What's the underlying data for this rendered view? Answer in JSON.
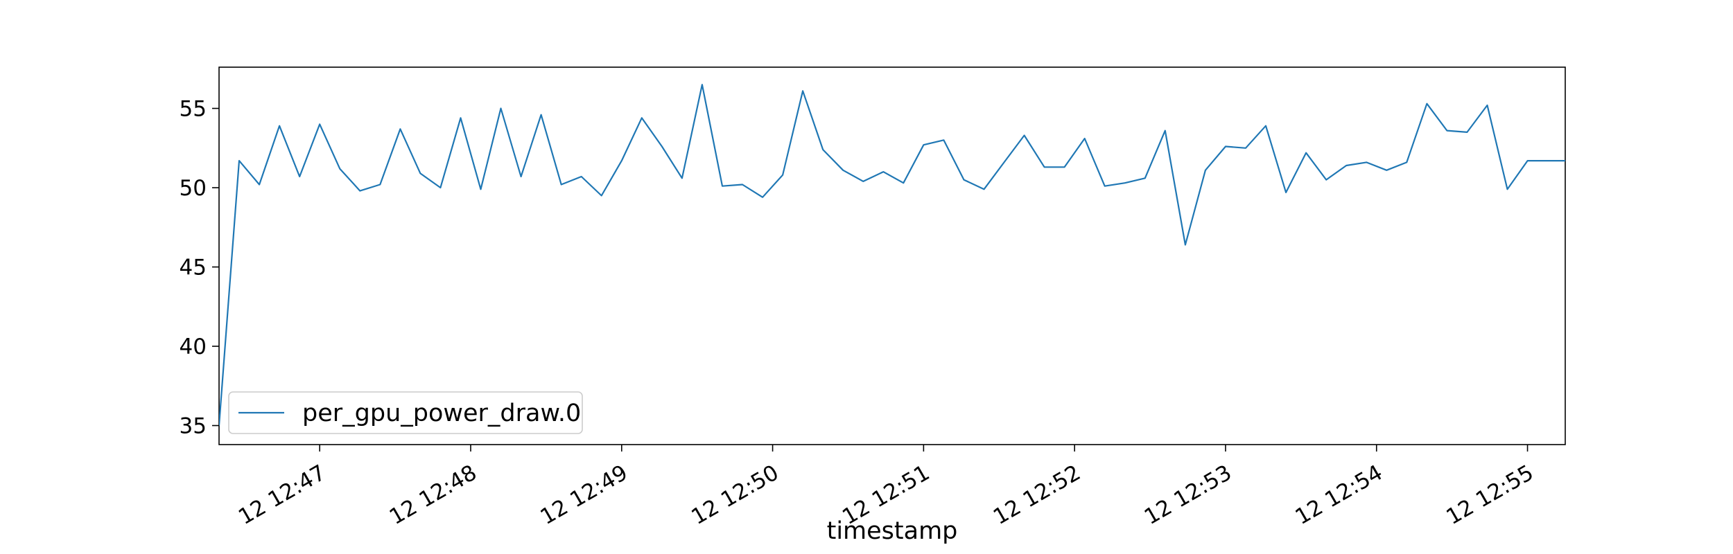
{
  "chart_data": {
    "type": "line",
    "title": "",
    "xlabel": "timestamp",
    "ylabel": "",
    "x_tick_labels": [
      "12 12:47",
      "12 12:48",
      "12 12:49",
      "12 12:50",
      "12 12:51",
      "12 12:52",
      "12 12:53",
      "12 12:54",
      "12 12:55"
    ],
    "y_ticks": [
      35,
      40,
      45,
      50,
      55
    ],
    "x_range": [
      "12:46:20",
      "12:55:15"
    ],
    "ylim": [
      33.8,
      57.6
    ],
    "grid": false,
    "legend_position": "bottom-left",
    "colors": {
      "series": "#1f77b4",
      "frame": "#000000",
      "legend_border": "#cccccc"
    },
    "series": [
      {
        "name": "per_gpu_power_draw.0",
        "x": [
          "12:46:20",
          "12:46:28",
          "12:46:36",
          "12:46:44",
          "12:46:52",
          "12:47:00",
          "12:47:08",
          "12:47:16",
          "12:47:24",
          "12:47:32",
          "12:47:40",
          "12:47:48",
          "12:47:56",
          "12:48:04",
          "12:48:12",
          "12:48:20",
          "12:48:28",
          "12:48:36",
          "12:48:44",
          "12:48:52",
          "12:49:00",
          "12:49:08",
          "12:49:16",
          "12:49:24",
          "12:49:32",
          "12:49:40",
          "12:49:48",
          "12:49:56",
          "12:50:04",
          "12:50:12",
          "12:50:20",
          "12:50:28",
          "12:50:36",
          "12:50:44",
          "12:50:52",
          "12:51:00",
          "12:51:08",
          "12:51:16",
          "12:51:24",
          "12:51:32",
          "12:51:40",
          "12:51:48",
          "12:51:56",
          "12:52:04",
          "12:52:12",
          "12:52:20",
          "12:52:28",
          "12:52:36",
          "12:52:44",
          "12:52:52",
          "12:53:00",
          "12:53:08",
          "12:53:16",
          "12:53:24",
          "12:53:32",
          "12:53:40",
          "12:53:48",
          "12:53:56",
          "12:54:04",
          "12:54:12",
          "12:54:20",
          "12:54:28",
          "12:54:36",
          "12:54:44",
          "12:54:52",
          "12:55:00",
          "12:55:08",
          "12:55:15"
        ],
        "y": [
          35.0,
          51.7,
          50.2,
          53.9,
          50.7,
          54.0,
          51.2,
          49.8,
          50.2,
          53.7,
          50.9,
          50.0,
          54.4,
          49.9,
          55.0,
          50.7,
          54.6,
          50.2,
          50.7,
          49.5,
          51.7,
          54.4,
          52.6,
          50.6,
          56.5,
          50.1,
          50.2,
          49.4,
          50.8,
          56.1,
          52.4,
          51.1,
          50.4,
          51.0,
          50.3,
          52.7,
          53.0,
          50.5,
          49.9,
          51.6,
          53.3,
          51.3,
          51.3,
          53.1,
          50.1,
          50.3,
          50.6,
          53.6,
          46.4,
          51.1,
          52.6,
          52.5,
          53.9,
          49.7,
          52.2,
          50.5,
          51.4,
          51.6,
          51.1,
          51.6,
          55.3,
          53.6,
          53.5,
          55.2,
          49.9,
          51.7,
          51.7,
          51.7
        ]
      }
    ]
  }
}
